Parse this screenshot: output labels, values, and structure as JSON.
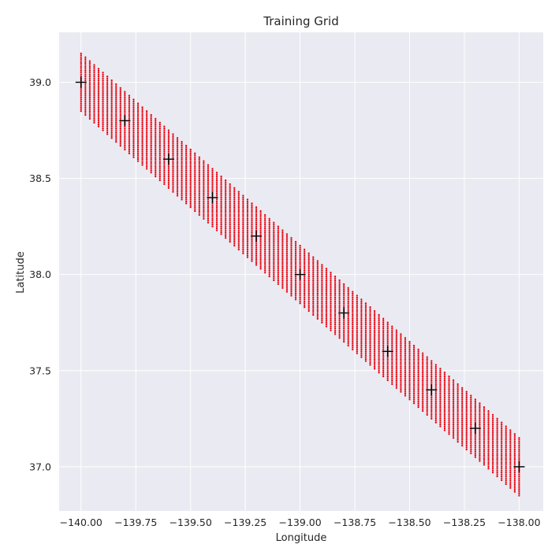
{
  "chart_data": {
    "type": "scatter",
    "title": "Training Grid",
    "xlabel": "Longitude",
    "ylabel": "Latitude",
    "xlim": [
      -140.1,
      -137.89
    ],
    "ylim": [
      36.77,
      39.26
    ],
    "xticks": [
      -140.0,
      -139.75,
      -139.5,
      -139.25,
      -139.0,
      -138.75,
      -138.5,
      -138.25,
      -138.0
    ],
    "xtick_labels": [
      "−140.00",
      "−139.75",
      "−139.50",
      "−139.25",
      "−139.00",
      "−138.75",
      "−138.50",
      "−138.25",
      "−138.00"
    ],
    "yticks": [
      37.0,
      37.5,
      38.0,
      38.5,
      39.0
    ],
    "ytick_labels": [
      "37.0",
      "37.5",
      "38.0",
      "38.5",
      "39.0"
    ],
    "grid": true,
    "series": [
      {
        "marker": "dot",
        "color": "#e8000b",
        "grid_band": {
          "start": [
            -140.0,
            39.0
          ],
          "end": [
            -138.0,
            37.0
          ],
          "n_columns": 101,
          "lat_offset_min": -0.15,
          "lat_offset_max": 0.15,
          "lat_step": 0.01
        }
      },
      {
        "marker": "plus",
        "color": "#000000",
        "x": [
          -140.0,
          -139.8,
          -139.6,
          -139.4,
          -139.2,
          -139.0,
          -138.8,
          -138.6,
          -138.4,
          -138.2,
          -138.0
        ],
        "y": [
          39.0,
          38.8,
          38.6,
          38.4,
          38.2,
          38.0,
          37.8,
          37.6,
          37.4,
          37.2,
          37.0
        ]
      }
    ]
  }
}
